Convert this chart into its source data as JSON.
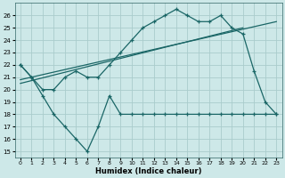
{
  "xlabel": "Humidex (Indice chaleur)",
  "background_color": "#cde8e8",
  "grid_color": "#aacccc",
  "line_color": "#1a6666",
  "xlim": [
    -0.5,
    23.5
  ],
  "ylim": [
    14.5,
    27
  ],
  "yticks": [
    15,
    16,
    17,
    18,
    19,
    20,
    21,
    22,
    23,
    24,
    25,
    26
  ],
  "xticks": [
    0,
    1,
    2,
    3,
    4,
    5,
    6,
    7,
    8,
    9,
    10,
    11,
    12,
    13,
    14,
    15,
    16,
    17,
    18,
    19,
    20,
    21,
    22,
    23
  ],
  "curve_x": [
    0,
    1,
    2,
    3,
    4,
    5,
    6,
    7,
    8,
    9,
    10,
    11,
    12,
    13,
    14,
    15,
    16,
    17,
    18,
    19,
    20,
    21,
    22,
    23
  ],
  "curve_y": [
    22,
    21,
    20,
    20,
    21,
    21.5,
    21,
    21,
    22,
    23,
    24,
    25,
    25.5,
    26,
    26.5,
    26,
    25.5,
    25.5,
    26,
    25,
    24.5,
    21.5,
    19,
    18
  ],
  "zigzag_x": [
    0,
    1,
    2,
    3,
    4,
    5,
    6,
    7,
    8,
    9,
    10,
    11,
    12,
    13,
    14,
    15,
    16,
    17,
    18,
    19,
    20,
    21,
    22,
    23
  ],
  "zigzag_y": [
    22,
    21,
    19.5,
    18,
    17,
    16,
    15,
    17,
    19.5,
    18,
    18,
    18,
    18,
    18,
    18,
    18,
    18,
    18,
    18,
    18,
    18,
    18,
    18,
    18
  ],
  "trend1_x": [
    0,
    20
  ],
  "trend1_y": [
    20.5,
    25.0
  ],
  "trend2_x": [
    0,
    23
  ],
  "trend2_y": [
    20.8,
    25.5
  ]
}
